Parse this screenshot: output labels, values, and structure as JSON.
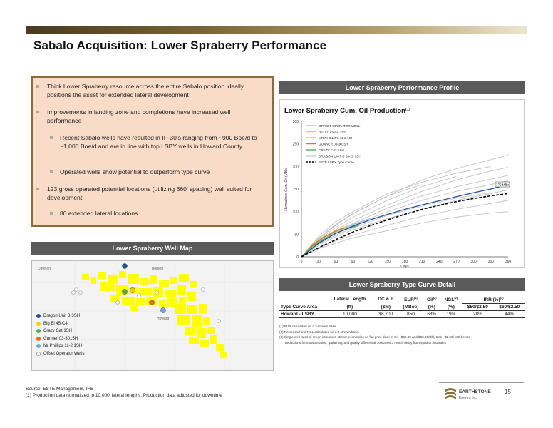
{
  "slide": {
    "title": "Sabalo Acquisition: Lower Spraberry Performance",
    "page_number": "15"
  },
  "bullets": [
    {
      "text": "Thick Lower Spraberry resource across the entire Sabalo position ideally positions the asset for extended lateral development",
      "level": 1
    },
    {
      "text": "Improvements in landing zone and completions have increased well performance",
      "level": 1
    },
    {
      "text": "Recent Sabalo wells have resulted in IP-30’s ranging from ~900 Boe/d to ~1,000 Boe/d and are in line with top LSBY wells in Howard County",
      "level": 2
    },
    {
      "text": "Operated wells show potential to outperform type curve",
      "level": 2
    },
    {
      "text": "123 gross operated potential locations (utilizing 660’ spacing) well suited for development",
      "level": 1
    },
    {
      "text": "80 extended lateral locations",
      "level": 2
    }
  ],
  "panels": {
    "performance_header": "Lower Spraberry Performance Profile",
    "map_header": "Lower Spraberry Well Map",
    "typecurve_header": "Lower Spraberry Type Curve Detail"
  },
  "chart_data": {
    "type": "line",
    "title": "Lower Spraberry Cum. Oil Production",
    "title_superscript": "(1)",
    "xlabel": "Days",
    "ylabel": "Normalized Cum. Oil (MBo)",
    "xlim": [
      0,
      360
    ],
    "ylim": [
      0,
      300
    ],
    "x_ticks": [
      0,
      30,
      60,
      90,
      120,
      150,
      180,
      210,
      240,
      270,
      300,
      330,
      360
    ],
    "y_ticks": [
      0,
      50,
      100,
      150,
      200,
      250,
      300
    ],
    "legend_position": "top-left",
    "annotation": "370 MBo",
    "legend": [
      {
        "name": "OFFSET OPERATOR WELL",
        "color": "#bdbdbd"
      },
      {
        "name": "BIG EL 45-C4 1SH",
        "color": "#f2d600"
      },
      {
        "name": "MR PHILLIPS 11-2 1SH",
        "color": "#9fc5e8"
      },
      {
        "name": "GUNNER 03-3015H",
        "color": "#e07020"
      },
      {
        "name": "CRAZY CAT 1SH",
        "color": "#4caf50"
      },
      {
        "name": "DRAGON UNIT B 20-29 3SH",
        "color": "#1f4e9c"
      },
      {
        "name": "ESTE LSBY Type Curve",
        "color": "#000000"
      }
    ],
    "series": [
      {
        "name": "OFFSET OPERATOR WELL",
        "color": "#bdbdbd",
        "x": [
          0,
          30,
          60,
          90,
          150,
          210,
          270,
          330,
          360
        ],
        "y": [
          0,
          40,
          70,
          95,
          135,
          170,
          195,
          215,
          225
        ]
      },
      {
        "name": "OFFSET OPERATOR WELL",
        "color": "#bdbdbd",
        "x": [
          0,
          30,
          60,
          90,
          150,
          210,
          270,
          330,
          360
        ],
        "y": [
          0,
          35,
          60,
          80,
          115,
          145,
          170,
          190,
          198
        ]
      },
      {
        "name": "OFFSET OPERATOR WELL",
        "color": "#bdbdbd",
        "x": [
          0,
          30,
          60,
          90,
          150,
          210,
          270,
          330,
          360
        ],
        "y": [
          0,
          30,
          52,
          70,
          100,
          125,
          145,
          160,
          168
        ]
      },
      {
        "name": "OFFSET OPERATOR WELL",
        "color": "#bdbdbd",
        "x": [
          0,
          30,
          60,
          90,
          150,
          210,
          270,
          330
        ],
        "y": [
          0,
          45,
          78,
          100,
          140,
          165,
          185,
          200
        ]
      },
      {
        "name": "OFFSET OPERATOR WELL",
        "color": "#bdbdbd",
        "x": [
          0,
          30,
          60,
          90,
          150,
          210,
          270,
          330,
          360
        ],
        "y": [
          0,
          25,
          45,
          60,
          85,
          105,
          125,
          140,
          148
        ]
      },
      {
        "name": "OFFSET OPERATOR WELL",
        "color": "#bdbdbd",
        "x": [
          0,
          30,
          60,
          90,
          150,
          210,
          270
        ],
        "y": [
          0,
          38,
          65,
          88,
          125,
          155,
          178
        ]
      },
      {
        "name": "OFFSET OPERATOR WELL",
        "color": "#bdbdbd",
        "x": [
          0,
          30,
          60,
          90,
          150,
          210,
          270,
          330,
          360
        ],
        "y": [
          0,
          20,
          35,
          48,
          70,
          90,
          105,
          118,
          125
        ]
      },
      {
        "name": "OFFSET OPERATOR WELL",
        "color": "#bdbdbd",
        "x": [
          0,
          30,
          60,
          90,
          150,
          210
        ],
        "y": [
          0,
          42,
          72,
          96,
          135,
          160
        ]
      },
      {
        "name": "OFFSET OPERATOR WELL",
        "color": "#bdbdbd",
        "x": [
          0,
          30,
          60,
          90,
          150,
          210,
          270,
          330,
          360
        ],
        "y": [
          0,
          32,
          55,
          74,
          108,
          135,
          155,
          172,
          180
        ]
      },
      {
        "name": "OFFSET OPERATOR WELL",
        "color": "#bdbdbd",
        "x": [
          0,
          30,
          60,
          90,
          150,
          210,
          270,
          330
        ],
        "y": [
          0,
          28,
          48,
          64,
          92,
          112,
          130,
          142
        ]
      },
      {
        "name": "OFFSET OPERATOR WELL",
        "color": "#bdbdbd",
        "x": [
          0,
          30,
          60,
          90,
          150,
          210,
          270,
          330,
          360
        ],
        "y": [
          0,
          18,
          30,
          42,
          58,
          75,
          88,
          97,
          100
        ]
      },
      {
        "name": "BIG EL 45-C4 1SH",
        "color": "#f2d600",
        "x": [
          0,
          20,
          40,
          60,
          80
        ],
        "y": [
          0,
          28,
          45,
          58,
          68
        ]
      },
      {
        "name": "MR PHILLIPS 11-2 1SH",
        "color": "#9fc5e8",
        "x": [
          0,
          20,
          40,
          60,
          90,
          120
        ],
        "y": [
          0,
          25,
          42,
          55,
          72,
          85
        ]
      },
      {
        "name": "GUNNER 03-3015H",
        "color": "#e07020",
        "x": [
          0,
          20,
          40,
          60,
          75
        ],
        "y": [
          0,
          27,
          44,
          57,
          64
        ]
      },
      {
        "name": "CRAZY CAT 1SH",
        "color": "#4caf50",
        "x": [
          0,
          20,
          40,
          60,
          80,
          100
        ],
        "y": [
          0,
          24,
          40,
          52,
          62,
          70
        ]
      },
      {
        "name": "DRAGON UNIT B 20-29 3SH",
        "color": "#1f4e9c",
        "x": [
          0,
          30,
          60,
          90,
          120,
          150,
          180,
          210,
          240,
          270,
          300,
          330,
          360
        ],
        "y": [
          0,
          30,
          52,
          68,
          82,
          94,
          105,
          115,
          124,
          133,
          142,
          150,
          160
        ]
      },
      {
        "name": "ESTE LSBY Type Curve",
        "color": "#000000",
        "dashed": true,
        "x": [
          0,
          30,
          60,
          90,
          120,
          150,
          180,
          210,
          240,
          270,
          300,
          330,
          360
        ],
        "y": [
          0,
          20,
          38,
          55,
          69,
          82,
          94,
          105,
          114,
          122,
          129,
          135,
          140
        ]
      }
    ]
  },
  "map": {
    "labels": {
      "top_left": "Dawson",
      "top_mid": "Borden",
      "county": "Howard"
    },
    "legend": [
      {
        "name": "Dragon Unit B 3SH",
        "color": "#1f4e9c"
      },
      {
        "name": "Big El 45-C4",
        "color": "#f2d600"
      },
      {
        "name": "Crazy Cat 1SH",
        "color": "#4caf50"
      },
      {
        "name": "Gunner 03-3015H",
        "color": "#e07020"
      },
      {
        "name": "Mr Phillips 11-2 1SH",
        "color": "#6fa8dc"
      },
      {
        "name": "Offset Operator Wells",
        "color": "#ffffff"
      }
    ]
  },
  "type_curve_table": {
    "header_row1": [
      "",
      "Lateral Length",
      "DC & E",
      "EUR",
      "Oil",
      "NGL",
      "IRR (%)",
      ""
    ],
    "header_sup": [
      "",
      "",
      "",
      "(1)",
      "(2)",
      "(2)",
      "(3)",
      ""
    ],
    "header_row2": [
      "Type Curve Area",
      "(ft)",
      "($M)",
      "(MBoe)",
      "(%)",
      "(%)",
      "$50/$2.50",
      "$60/$2.50"
    ],
    "rows": [
      [
        "Howard - LSBY",
        "10,000",
        "$8,700",
        "850",
        "68%",
        "19%",
        "28%",
        "44%"
      ]
    ],
    "footnotes": [
      "(1) EUR calculated on a 3-stream basis",
      "(2) Percent oil and NGL calculated on a 3-stream basis",
      "(3) Single well rates of return assume 3-stream economics on flat price deck of Oil - $50.00 and $60.00/Bbl, Gas - $2.50/ Mcf before",
      "deductions for transportation, gathering, and quality differential. Assumes 3 month delay from spud to first sales"
    ]
  },
  "source": {
    "line1": "Source: ESTE Management, IHS",
    "line2": "(1)   Production data normalized to 10,000’ lateral lengths. Production data adjusted for downtime"
  },
  "logo": {
    "name": "EARTHSTONE",
    "sub": "Energy, Inc."
  }
}
